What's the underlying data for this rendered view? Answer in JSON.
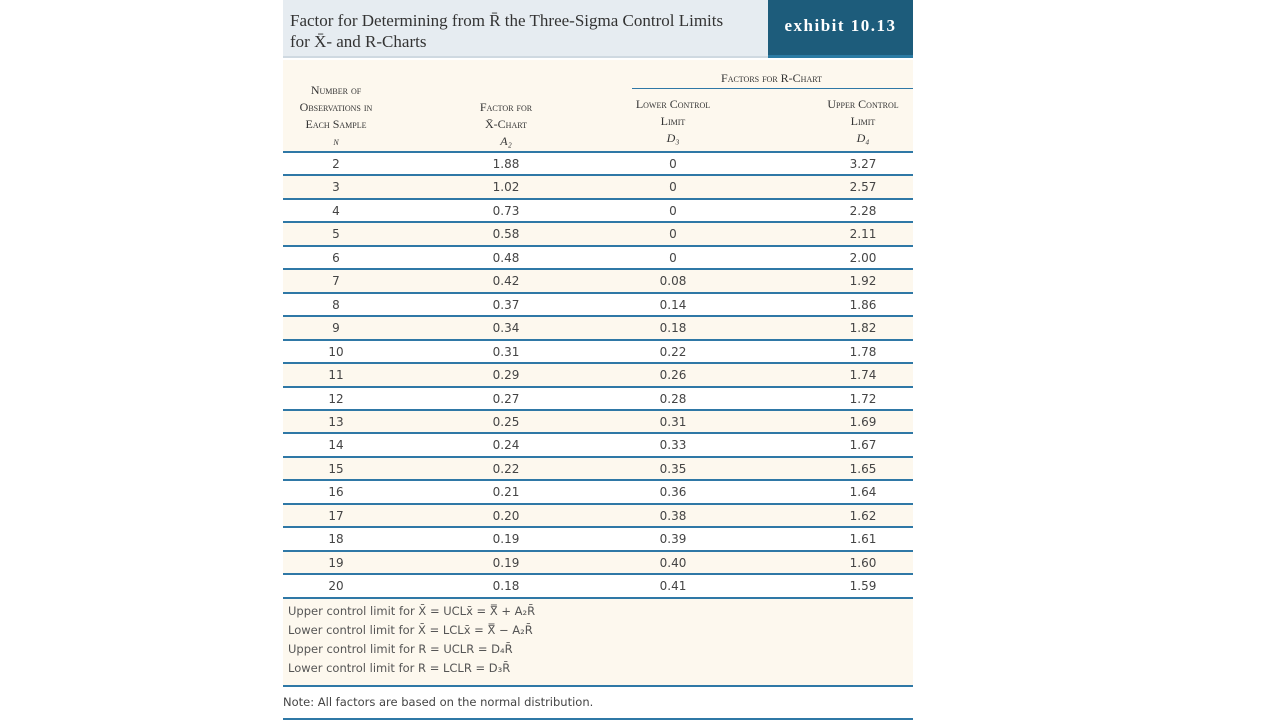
{
  "header": {
    "title_lines": [
      "Factor for Determining from R̄ the Three-Sigma Control Limits",
      "for X̄- and R-Charts"
    ],
    "exhibit": "exhibit 10.13"
  },
  "table": {
    "group_header": "Factors for R-Chart",
    "columns": [
      {
        "lines": [
          "Number of",
          "Observations in",
          "Each Sample"
        ],
        "symbol": "n"
      },
      {
        "lines": [
          "Factor for",
          "X̄-Chart"
        ],
        "symbol": "A₂"
      },
      {
        "lines": [
          "Lower Control",
          "Limit"
        ],
        "symbol": "D₃"
      },
      {
        "lines": [
          "Upper Control",
          "Limit"
        ],
        "symbol": "D₄"
      }
    ],
    "rows": [
      [
        "2",
        "1.88",
        "0",
        "3.27"
      ],
      [
        "3",
        "1.02",
        "0",
        "2.57"
      ],
      [
        "4",
        "0.73",
        "0",
        "2.28"
      ],
      [
        "5",
        "0.58",
        "0",
        "2.11"
      ],
      [
        "6",
        "0.48",
        "0",
        "2.00"
      ],
      [
        "7",
        "0.42",
        "0.08",
        "1.92"
      ],
      [
        "8",
        "0.37",
        "0.14",
        "1.86"
      ],
      [
        "9",
        "0.34",
        "0.18",
        "1.82"
      ],
      [
        "10",
        "0.31",
        "0.22",
        "1.78"
      ],
      [
        "11",
        "0.29",
        "0.26",
        "1.74"
      ],
      [
        "12",
        "0.27",
        "0.28",
        "1.72"
      ],
      [
        "13",
        "0.25",
        "0.31",
        "1.69"
      ],
      [
        "14",
        "0.24",
        "0.33",
        "1.67"
      ],
      [
        "15",
        "0.22",
        "0.35",
        "1.65"
      ],
      [
        "16",
        "0.21",
        "0.36",
        "1.64"
      ],
      [
        "17",
        "0.20",
        "0.38",
        "1.62"
      ],
      [
        "18",
        "0.19",
        "0.39",
        "1.61"
      ],
      [
        "19",
        "0.19",
        "0.40",
        "1.60"
      ],
      [
        "20",
        "0.18",
        "0.41",
        "1.59"
      ]
    ]
  },
  "formulas": [
    "Upper control limit for X̄ = UCLx̄ = X̿ + A₂R̄",
    "Lower control limit for X̄ = LCLx̄ = X̿ − A₂R̄",
    "Upper control limit for R = UCLR = D₄R̄",
    "Lower control limit for R = LCLR = D₃R̄"
  ],
  "note": "Note: All factors are based on the normal distribution."
}
